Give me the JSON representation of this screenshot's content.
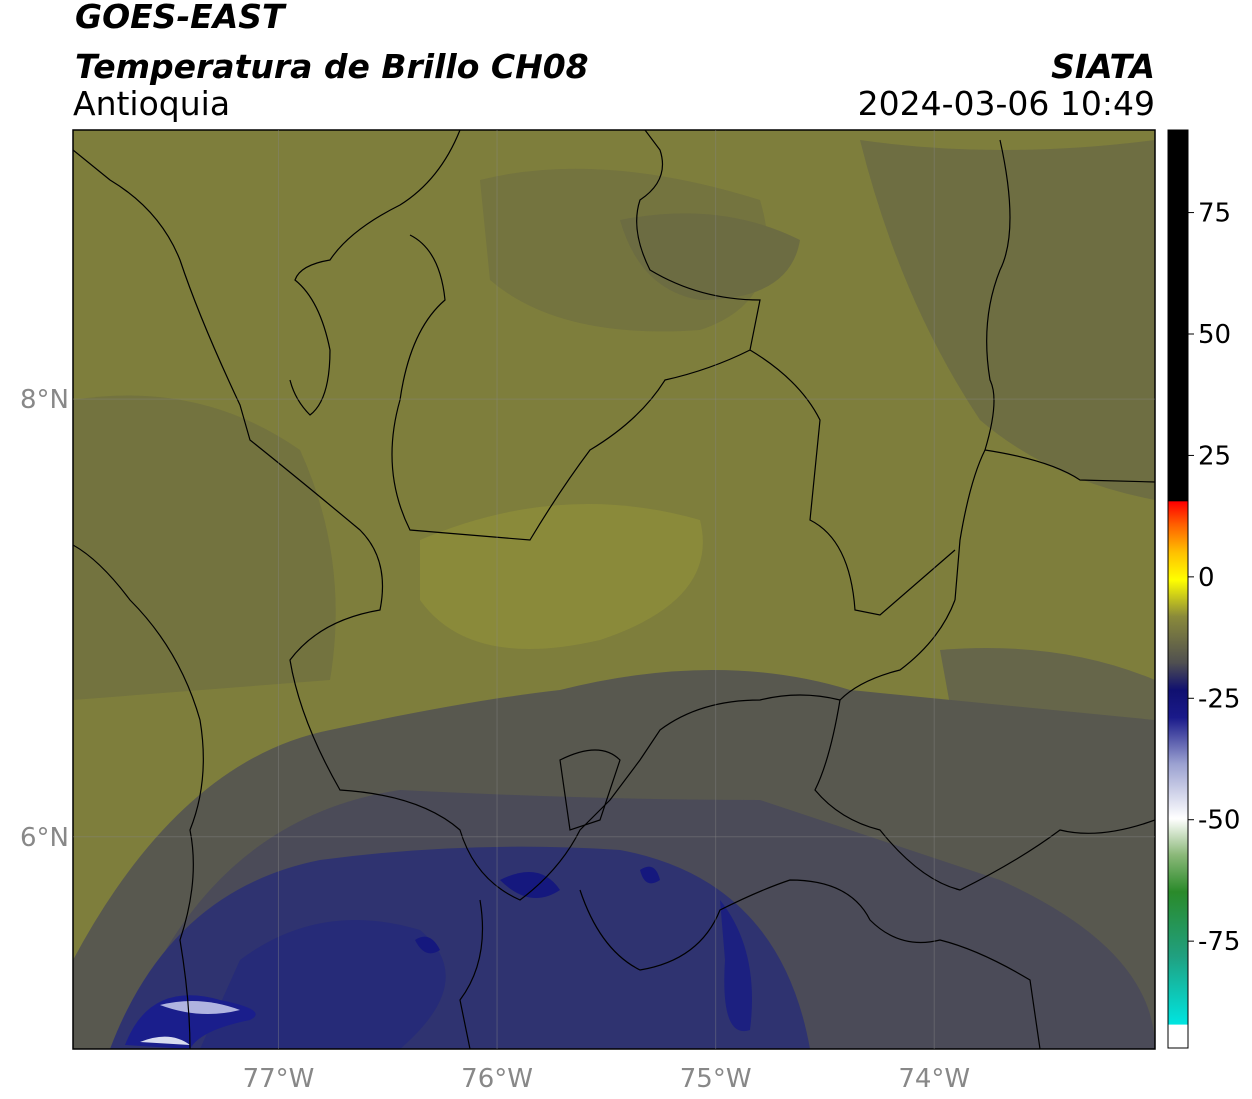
{
  "chart_data": {
    "type": "map",
    "title": "GOES-EAST",
    "subtitle": "Temperatura de Brillo CH08",
    "region": "Antioquia",
    "source": "SIATA",
    "datetime": "2024-03-06 10:49",
    "xlim": [
      -77.94,
      -72.99
    ],
    "ylim": [
      5.03,
      9.23
    ],
    "xticks": [
      {
        "value": -77,
        "label": "77°W"
      },
      {
        "value": -76,
        "label": "76°W"
      },
      {
        "value": -75,
        "label": "75°W"
      },
      {
        "value": -74,
        "label": "74°W"
      }
    ],
    "yticks": [
      {
        "value": 6,
        "label": "6°N"
      },
      {
        "value": 8,
        "label": "8°N"
      }
    ],
    "grid": true,
    "colorbar": {
      "lim": [
        -97,
        92
      ],
      "ticks": [
        75,
        50,
        25,
        0,
        -25,
        -50,
        -75
      ]
    }
  }
}
